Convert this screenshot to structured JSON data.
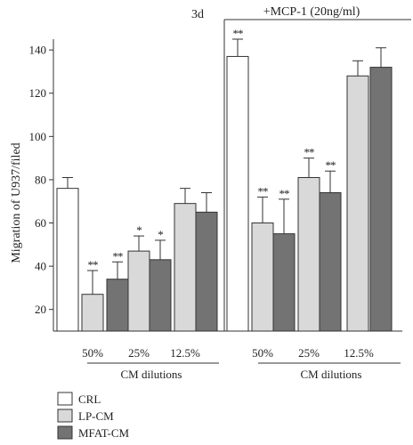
{
  "chart_data": {
    "type": "bar",
    "ylabel": "Migration of U937/filed",
    "ylim": [
      10,
      145
    ],
    "yticks": [
      20,
      40,
      60,
      80,
      100,
      120,
      140
    ],
    "grid": false,
    "legend_placement": "bottom-left",
    "annotation_time": "3d",
    "annotation_treatment": "+MCP-1 (20ng/ml)",
    "dilution_title": "CM dilutions",
    "dilution_labels": [
      "50%",
      "25%",
      "12.5%"
    ],
    "series": [
      {
        "name": "CRL",
        "color": "#ffffff"
      },
      {
        "name": "LP-CM",
        "color": "#d9d9d9"
      },
      {
        "name": "MFAT-CM",
        "color": "#737373"
      }
    ],
    "bars": [
      {
        "panel": 0,
        "dilution": "",
        "series": "CRL",
        "value": 76,
        "error": 5,
        "sig": ""
      },
      {
        "panel": 0,
        "dilution": "50%",
        "series": "LP-CM",
        "value": 27,
        "error": 11,
        "sig": "**"
      },
      {
        "panel": 0,
        "dilution": "50%",
        "series": "MFAT-CM",
        "value": 34,
        "error": 8,
        "sig": "**"
      },
      {
        "panel": 0,
        "dilution": "25%",
        "series": "LP-CM",
        "value": 47,
        "error": 7,
        "sig": "*"
      },
      {
        "panel": 0,
        "dilution": "25%",
        "series": "MFAT-CM",
        "value": 43,
        "error": 9,
        "sig": "*"
      },
      {
        "panel": 0,
        "dilution": "12.5%",
        "series": "LP-CM",
        "value": 69,
        "error": 7,
        "sig": ""
      },
      {
        "panel": 0,
        "dilution": "12.5%",
        "series": "MFAT-CM",
        "value": 65,
        "error": 9,
        "sig": ""
      },
      {
        "panel": 1,
        "dilution": "",
        "series": "CRL",
        "value": 137,
        "error": 8,
        "sig": "**"
      },
      {
        "panel": 1,
        "dilution": "50%",
        "series": "LP-CM",
        "value": 60,
        "error": 12,
        "sig": "**"
      },
      {
        "panel": 1,
        "dilution": "50%",
        "series": "MFAT-CM",
        "value": 55,
        "error": 16,
        "sig": "**"
      },
      {
        "panel": 1,
        "dilution": "25%",
        "series": "LP-CM",
        "value": 81,
        "error": 9,
        "sig": "**"
      },
      {
        "panel": 1,
        "dilution": "25%",
        "series": "MFAT-CM",
        "value": 74,
        "error": 10,
        "sig": "**"
      },
      {
        "panel": 1,
        "dilution": "12.5%",
        "series": "LP-CM",
        "value": 128,
        "error": 7,
        "sig": ""
      },
      {
        "panel": 1,
        "dilution": "12.5%",
        "series": "MFAT-CM",
        "value": 132,
        "error": 9,
        "sig": ""
      }
    ]
  }
}
